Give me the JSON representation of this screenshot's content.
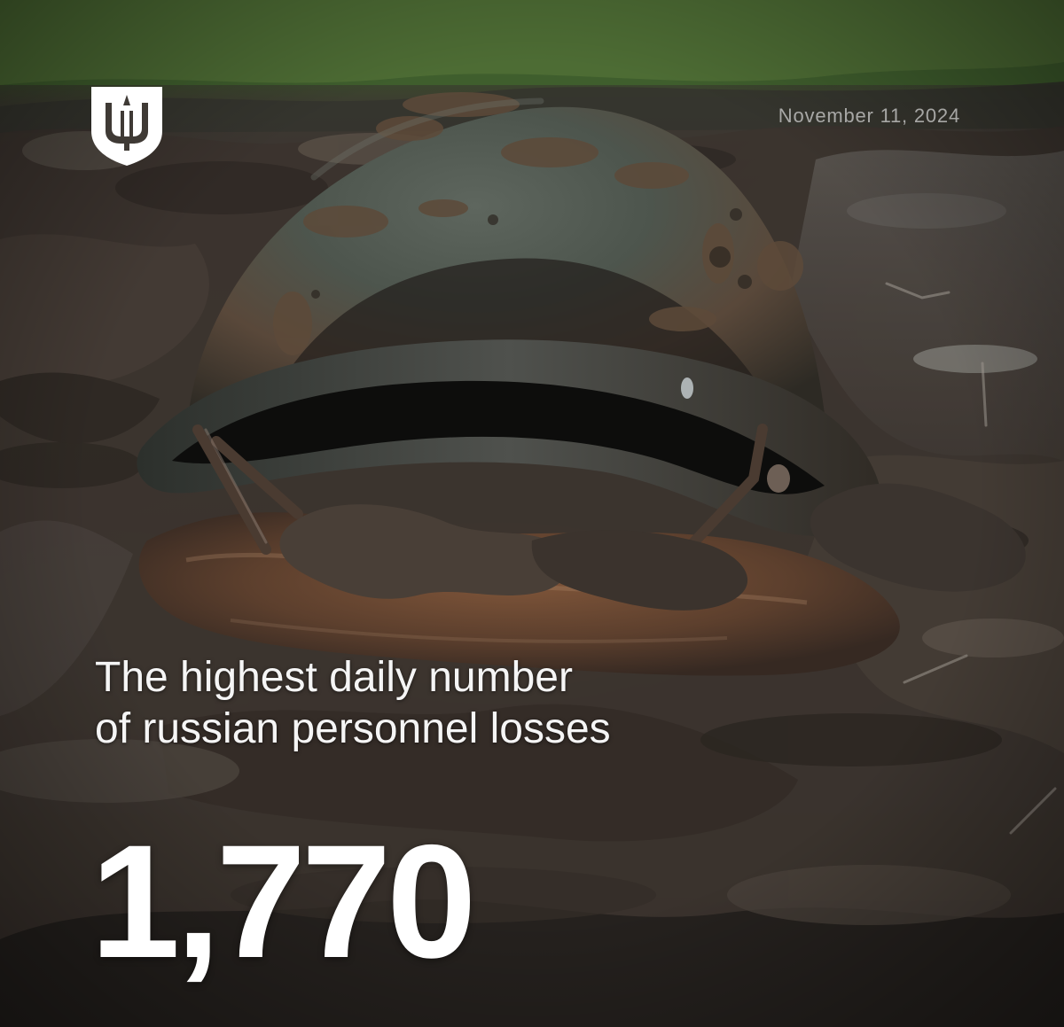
{
  "post": {
    "date": "November 11, 2024",
    "headline_line_1": "The highest daily number",
    "headline_line_2": "of russian personnel losses",
    "count": "1,770"
  },
  "image": {
    "subject": "muddy steel helmet in a puddle",
    "logo_icon": "trident-shield-icon"
  },
  "colors": {
    "text_primary": "#ffffff",
    "date_text": "#d6d6d6",
    "mud_dark": "#2d2823",
    "grass": "#44632e",
    "helmet": "#47514a"
  }
}
